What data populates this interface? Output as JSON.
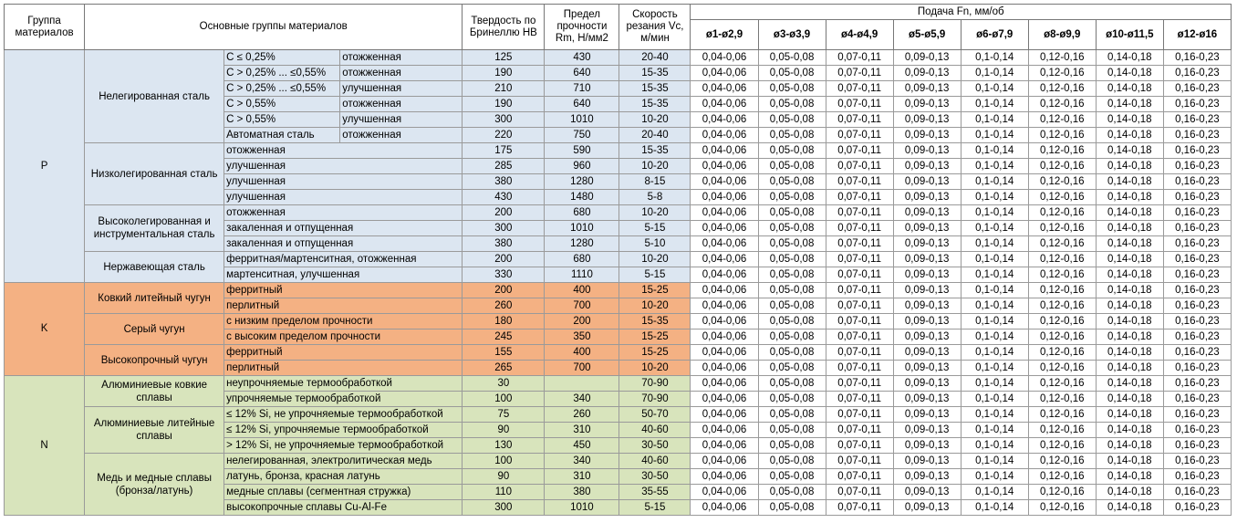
{
  "header": {
    "group": "Группа материалов",
    "main": "Основные группы материалов",
    "hb": "Твердость по Бринеллю НВ",
    "rm": "Предел прочности Rm, Н/мм2",
    "vc": "Скорость резания Vc, м/мин",
    "feed": "Подача Fn, мм/об",
    "diameters": [
      "ø1-ø2,9",
      "ø3-ø3,9",
      "ø4-ø4,9",
      "ø5-ø5,9",
      "ø6-ø7,9",
      "ø8-ø9,9",
      "ø10-ø11,5",
      "ø12-ø16"
    ]
  },
  "groups": [
    {
      "code": "P",
      "color": "#dce6f1",
      "subgroups": [
        {
          "name": "Нелегированная сталь",
          "rows": [
            {
              "cond": "C ≤ 0,25%",
              "treat": "отожженная",
              "hb": 125,
              "rm": 430,
              "vc": "20-40",
              "feed": [
                "0,04-0,06",
                "0,05-0,08",
                "0,07-0,11",
                "0,09-0,13",
                "0,1-0,14",
                "0,12-0,16",
                "0,14-0,18",
                "0,16-0,23"
              ]
            },
            {
              "cond": "C > 0,25% ... ≤0,55%",
              "treat": "отожженная",
              "hb": 190,
              "rm": 640,
              "vc": "15-35",
              "feed": [
                "0,04-0,06",
                "0,05-0,08",
                "0,07-0,11",
                "0,09-0,13",
                "0,1-0,14",
                "0,12-0,16",
                "0,14-0,18",
                "0,16-0,23"
              ]
            },
            {
              "cond": "C > 0,25% ... ≤0,55%",
              "treat": "улучшенная",
              "hb": 210,
              "rm": 710,
              "vc": "15-35",
              "feed": [
                "0,04-0,06",
                "0,05-0,08",
                "0,07-0,11",
                "0,09-0,13",
                "0,1-0,14",
                "0,12-0,16",
                "0,14-0,18",
                "0,16-0,23"
              ]
            },
            {
              "cond": "C > 0,55%",
              "treat": "отожженная",
              "hb": 190,
              "rm": 640,
              "vc": "15-35",
              "feed": [
                "0,04-0,06",
                "0,05-0,08",
                "0,07-0,11",
                "0,09-0,13",
                "0,1-0,14",
                "0,12-0,16",
                "0,14-0,18",
                "0,16-0,23"
              ]
            },
            {
              "cond": "C > 0,55%",
              "treat": "улучшенная",
              "hb": 300,
              "rm": 1010,
              "vc": "10-20",
              "feed": [
                "0,04-0,06",
                "0,05-0,08",
                "0,07-0,11",
                "0,09-0,13",
                "0,1-0,14",
                "0,12-0,16",
                "0,14-0,18",
                "0,16-0,23"
              ]
            },
            {
              "cond": "Автоматная сталь",
              "treat": "отожженная",
              "hb": 220,
              "rm": 750,
              "vc": "20-40",
              "feed": [
                "0,04-0,06",
                "0,05-0,08",
                "0,07-0,11",
                "0,09-0,13",
                "0,1-0,14",
                "0,12-0,16",
                "0,14-0,18",
                "0,16-0,23"
              ]
            }
          ]
        },
        {
          "name": "Низколегированная сталь",
          "rows": [
            {
              "cond": "отожженная",
              "hb": 175,
              "rm": 590,
              "vc": "15-35",
              "feed": [
                "0,04-0,06",
                "0,05-0,08",
                "0,07-0,11",
                "0,09-0,13",
                "0,1-0,14",
                "0,12-0,16",
                "0,14-0,18",
                "0,16-0,23"
              ]
            },
            {
              "cond": "улучшенная",
              "hb": 285,
              "rm": 960,
              "vc": "10-20",
              "feed": [
                "0,04-0,06",
                "0,05-0,08",
                "0,07-0,11",
                "0,09-0,13",
                "0,1-0,14",
                "0,12-0,16",
                "0,14-0,18",
                "0,16-0,23"
              ]
            },
            {
              "cond": "улучшенная",
              "hb": 380,
              "rm": 1280,
              "vc": "8-15",
              "feed": [
                "0,04-0,06",
                "0,05-0,08",
                "0,07-0,11",
                "0,09-0,13",
                "0,1-0,14",
                "0,12-0,16",
                "0,14-0,18",
                "0,16-0,23"
              ]
            },
            {
              "cond": "улучшенная",
              "hb": 430,
              "rm": 1480,
              "vc": "5-8",
              "feed": [
                "0,04-0,06",
                "0,05-0,08",
                "0,07-0,11",
                "0,09-0,13",
                "0,1-0,14",
                "0,12-0,16",
                "0,14-0,18",
                "0,16-0,23"
              ]
            }
          ]
        },
        {
          "name": "Высоколегированная и инструментальная сталь",
          "rows": [
            {
              "cond": "отожженная",
              "hb": 200,
              "rm": 680,
              "vc": "10-20",
              "feed": [
                "0,04-0,06",
                "0,05-0,08",
                "0,07-0,11",
                "0,09-0,13",
                "0,1-0,14",
                "0,12-0,16",
                "0,14-0,18",
                "0,16-0,23"
              ]
            },
            {
              "cond": "закаленная и отпущенная",
              "hb": 300,
              "rm": 1010,
              "vc": "5-15",
              "feed": [
                "0,04-0,06",
                "0,05-0,08",
                "0,07-0,11",
                "0,09-0,13",
                "0,1-0,14",
                "0,12-0,16",
                "0,14-0,18",
                "0,16-0,23"
              ]
            },
            {
              "cond": "закаленная и отпущенная",
              "hb": 380,
              "rm": 1280,
              "vc": "5-10",
              "feed": [
                "0,04-0,06",
                "0,05-0,08",
                "0,07-0,11",
                "0,09-0,13",
                "0,1-0,14",
                "0,12-0,16",
                "0,14-0,18",
                "0,16-0,23"
              ]
            }
          ]
        },
        {
          "name": "Нержавеющая сталь",
          "rows": [
            {
              "cond": "ферритная/мартенситная, отожженная",
              "hb": 200,
              "rm": 680,
              "vc": "10-20",
              "feed": [
                "0,04-0,06",
                "0,05-0,08",
                "0,07-0,11",
                "0,09-0,13",
                "0,1-0,14",
                "0,12-0,16",
                "0,14-0,18",
                "0,16-0,23"
              ]
            },
            {
              "cond": "мартенситная, улучшенная",
              "hb": 330,
              "rm": 1110,
              "vc": "5-15",
              "feed": [
                "0,04-0,06",
                "0,05-0,08",
                "0,07-0,11",
                "0,09-0,13",
                "0,1-0,14",
                "0,12-0,16",
                "0,14-0,18",
                "0,16-0,23"
              ]
            }
          ]
        }
      ]
    },
    {
      "code": "K",
      "color": "#f4b183",
      "subgroups": [
        {
          "name": "Ковкий литейный чугун",
          "rows": [
            {
              "cond": "ферритный",
              "hb": 200,
              "rm": 400,
              "vc": "15-25",
              "feed": [
                "0,04-0,06",
                "0,05-0,08",
                "0,07-0,11",
                "0,09-0,13",
                "0,1-0,14",
                "0,12-0,16",
                "0,14-0,18",
                "0,16-0,23"
              ]
            },
            {
              "cond": "перлитный",
              "hb": 260,
              "rm": 700,
              "vc": "10-20",
              "feed": [
                "0,04-0,06",
                "0,05-0,08",
                "0,07-0,11",
                "0,09-0,13",
                "0,1-0,14",
                "0,12-0,16",
                "0,14-0,18",
                "0,16-0,23"
              ]
            }
          ]
        },
        {
          "name": "Серый чугун",
          "rows": [
            {
              "cond": "с низким пределом прочности",
              "hb": 180,
              "rm": 200,
              "vc": "15-35",
              "feed": [
                "0,04-0,06",
                "0,05-0,08",
                "0,07-0,11",
                "0,09-0,13",
                "0,1-0,14",
                "0,12-0,16",
                "0,14-0,18",
                "0,16-0,23"
              ]
            },
            {
              "cond": "с высоким пределом прочности",
              "hb": 245,
              "rm": 350,
              "vc": "15-25",
              "feed": [
                "0,04-0,06",
                "0,05-0,08",
                "0,07-0,11",
                "0,09-0,13",
                "0,1-0,14",
                "0,12-0,16",
                "0,14-0,18",
                "0,16-0,23"
              ]
            }
          ]
        },
        {
          "name": "Высокопрочный чугун",
          "rows": [
            {
              "cond": "ферритный",
              "hb": 155,
              "rm": 400,
              "vc": "15-25",
              "feed": [
                "0,04-0,06",
                "0,05-0,08",
                "0,07-0,11",
                "0,09-0,13",
                "0,1-0,14",
                "0,12-0,16",
                "0,14-0,18",
                "0,16-0,23"
              ]
            },
            {
              "cond": "перлитный",
              "hb": 265,
              "rm": 700,
              "vc": "10-20",
              "feed": [
                "0,04-0,06",
                "0,05-0,08",
                "0,07-0,11",
                "0,09-0,13",
                "0,1-0,14",
                "0,12-0,16",
                "0,14-0,18",
                "0,16-0,23"
              ]
            }
          ]
        }
      ]
    },
    {
      "code": "N",
      "color": "#d8e4bc",
      "subgroups": [
        {
          "name": "Алюминиевые ковкие сплавы",
          "rows": [
            {
              "cond": "неупрочняемые термообработкой",
              "hb": 30,
              "rm": null,
              "vc": "70-90",
              "feed": [
                "0,04-0,06",
                "0,05-0,08",
                "0,07-0,11",
                "0,09-0,13",
                "0,1-0,14",
                "0,12-0,16",
                "0,14-0,18",
                "0,16-0,23"
              ]
            },
            {
              "cond": "упрочняемые термообработкой",
              "hb": 100,
              "rm": 340,
              "vc": "70-90",
              "feed": [
                "0,04-0,06",
                "0,05-0,08",
                "0,07-0,11",
                "0,09-0,13",
                "0,1-0,14",
                "0,12-0,16",
                "0,14-0,18",
                "0,16-0,23"
              ]
            }
          ]
        },
        {
          "name": "Алюминиевые литейные сплавы",
          "rows": [
            {
              "cond": "≤ 12% Si, не упрочняемые термообработкой",
              "hb": 75,
              "rm": 260,
              "vc": "50-70",
              "feed": [
                "0,04-0,06",
                "0,05-0,08",
                "0,07-0,11",
                "0,09-0,13",
                "0,1-0,14",
                "0,12-0,16",
                "0,14-0,18",
                "0,16-0,23"
              ]
            },
            {
              "cond": "≤ 12% Si, упрочняемые термообработкой",
              "hb": 90,
              "rm": 310,
              "vc": "40-60",
              "feed": [
                "0,04-0,06",
                "0,05-0,08",
                "0,07-0,11",
                "0,09-0,13",
                "0,1-0,14",
                "0,12-0,16",
                "0,14-0,18",
                "0,16-0,23"
              ]
            },
            {
              "cond": "> 12% Si, не упрочняемые термообработкой",
              "hb": 130,
              "rm": 450,
              "vc": "30-50",
              "feed": [
                "0,04-0,06",
                "0,05-0,08",
                "0,07-0,11",
                "0,09-0,13",
                "0,1-0,14",
                "0,12-0,16",
                "0,14-0,18",
                "0,16-0,23"
              ]
            }
          ]
        },
        {
          "name": "Медь и медные сплавы (бронза/латунь)",
          "rows": [
            {
              "cond": "нелегированная, электролитическая медь",
              "hb": 100,
              "rm": 340,
              "vc": "40-60",
              "feed": [
                "0,04-0,06",
                "0,05-0,08",
                "0,07-0,11",
                "0,09-0,13",
                "0,1-0,14",
                "0,12-0,16",
                "0,14-0,18",
                "0,16-0,23"
              ]
            },
            {
              "cond": "латунь, бронза, красная латунь",
              "hb": 90,
              "rm": 310,
              "vc": "30-50",
              "feed": [
                "0,04-0,06",
                "0,05-0,08",
                "0,07-0,11",
                "0,09-0,13",
                "0,1-0,14",
                "0,12-0,16",
                "0,14-0,18",
                "0,16-0,23"
              ]
            },
            {
              "cond": "медные сплавы (сегментная стружка)",
              "hb": 110,
              "rm": 380,
              "vc": "35-55",
              "feed": [
                "0,04-0,06",
                "0,05-0,08",
                "0,07-0,11",
                "0,09-0,13",
                "0,1-0,14",
                "0,12-0,16",
                "0,14-0,18",
                "0,16-0,23"
              ]
            },
            {
              "cond": "высокопрочные сплавы Cu-Al-Fe",
              "hb": 300,
              "rm": 1010,
              "vc": "5-15",
              "feed": [
                "0,04-0,06",
                "0,05-0,08",
                "0,07-0,11",
                "0,09-0,13",
                "0,1-0,14",
                "0,12-0,16",
                "0,14-0,18",
                "0,16-0,23"
              ]
            }
          ]
        }
      ]
    }
  ]
}
